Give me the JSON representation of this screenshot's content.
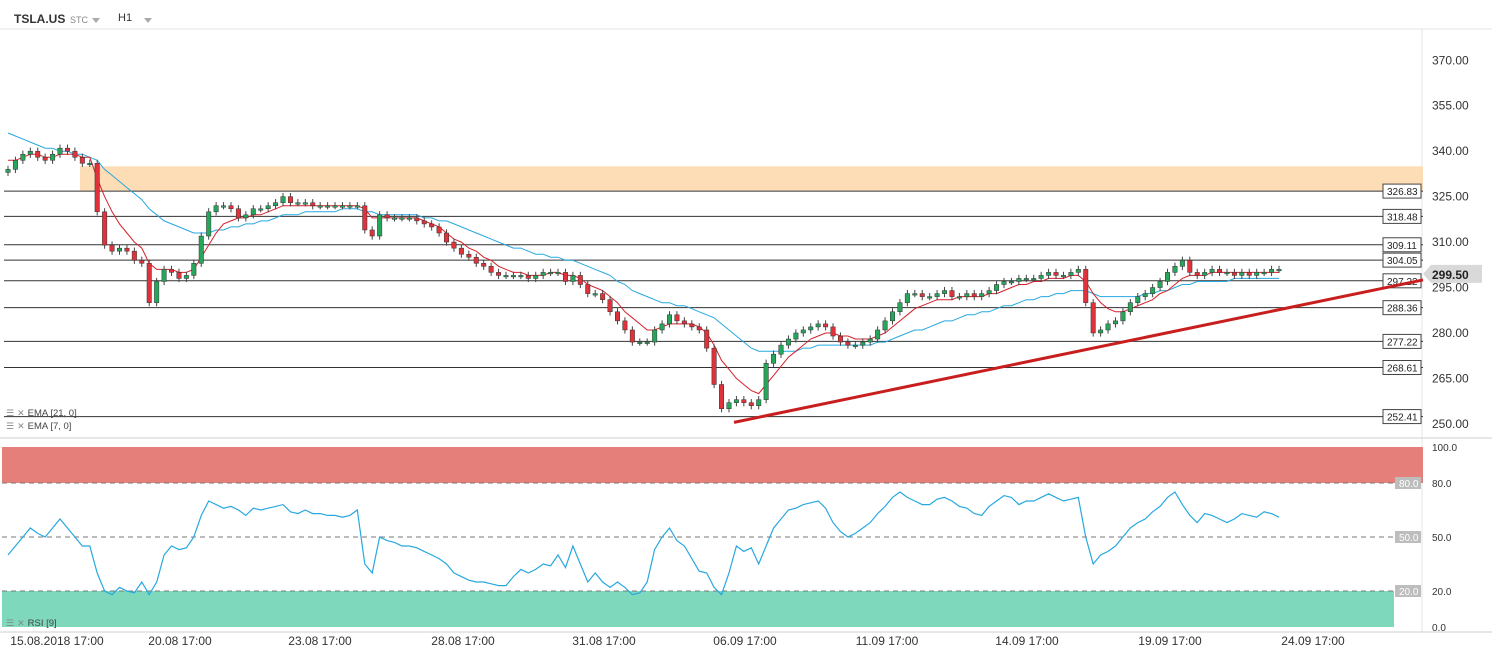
{
  "header": {
    "symbol": "TSLA.US",
    "sub": "STC",
    "timeframe": "H1"
  },
  "indicators": {
    "ema1": "EMA [21, 0]",
    "ema2": "EMA [7, 0]",
    "rsi": "RSI [9]"
  },
  "price_axis": {
    "ticks": [
      "370.00",
      "355.00",
      "340.00",
      "325.00",
      "310.00",
      "295.00",
      "280.00",
      "265.00",
      "250.00"
    ],
    "current": "299.50"
  },
  "rsi_axis": {
    "ticks": [
      "100.0",
      "80.0",
      "50.0",
      "20.0",
      "0.0"
    ]
  },
  "levels": [
    {
      "label": "326.83",
      "value": 326.83
    },
    {
      "label": "318.48",
      "value": 318.48
    },
    {
      "label": "309.11",
      "value": 309.11
    },
    {
      "label": "304.05",
      "value": 304.05
    },
    {
      "label": "297.22",
      "value": 297.22
    },
    {
      "label": "288.36",
      "value": 288.36
    },
    {
      "label": "277.22",
      "value": 277.22
    },
    {
      "label": "268.61",
      "value": 268.61
    },
    {
      "label": "252.41",
      "value": 252.41
    }
  ],
  "rsi_levels": [
    {
      "label": "80.0",
      "value": 80
    },
    {
      "label": "50.0",
      "value": 50
    },
    {
      "label": "20.0",
      "value": 20
    }
  ],
  "x_labels": [
    "15.08.2018 17:00",
    "20.08 17:00",
    "23.08 17:00",
    "28.08 17:00",
    "31.08 17:00",
    "06.09 17:00",
    "11.09 17:00",
    "14.09 17:00",
    "19.09 17:00",
    "24.09 17:00"
  ],
  "colors": {
    "up": "#26a65b",
    "down": "#e0323b",
    "ema7": "#d7202a",
    "ema21": "#28a8e0",
    "rsi": "#28a8e0",
    "zone": "#fbd7a9",
    "trend": "#c81e1e",
    "overbought": "#e57f7a",
    "oversold": "#7ed8bb",
    "current_badge": "#d9d9d9"
  },
  "chart_data": {
    "type": "candlestick",
    "y_range": [
      246,
      380
    ],
    "resistance_zone": [
      327,
      335
    ],
    "trendline": {
      "from_price": 250.5,
      "to_price": 297.5
    },
    "close": [
      334,
      337,
      339,
      340,
      338,
      337,
      339,
      341,
      340,
      338,
      336,
      336,
      320,
      309,
      307,
      308,
      307,
      304,
      303,
      290,
      297,
      301,
      300,
      298,
      299,
      303,
      312,
      320,
      322,
      322,
      321,
      318,
      319,
      321,
      321,
      322,
      323,
      325,
      323,
      323,
      323,
      322,
      322,
      322,
      322,
      322,
      322,
      322,
      314,
      312,
      319,
      318,
      318,
      318,
      318,
      317,
      316,
      315,
      313,
      310,
      308,
      306,
      305,
      303,
      302,
      300,
      299,
      299,
      299,
      299,
      298,
      299,
      300,
      300,
      300,
      297,
      299,
      296,
      293,
      293,
      291,
      287,
      284,
      281,
      277,
      277,
      277,
      281,
      283,
      286,
      284,
      283,
      282,
      281,
      275,
      263,
      255,
      257,
      258,
      257,
      256,
      258,
      270,
      273,
      276,
      278,
      280,
      281,
      282,
      283,
      282,
      279,
      277,
      276,
      276,
      277,
      278,
      281,
      284,
      287,
      290,
      293,
      293,
      292,
      292,
      293,
      294,
      292,
      292,
      293,
      292,
      293,
      294,
      296,
      297,
      297,
      298,
      298,
      298,
      299,
      300,
      299,
      299,
      300,
      301,
      290,
      280,
      281,
      283,
      284,
      287,
      290,
      292,
      293,
      295,
      297,
      300,
      302,
      304,
      300,
      299,
      300,
      301,
      300,
      300,
      299,
      300,
      299,
      300,
      300,
      301,
      301
    ],
    "ema7": [
      337,
      337,
      338,
      339,
      339,
      338,
      338,
      339,
      339,
      339,
      338,
      338,
      331,
      325,
      320,
      316,
      313,
      310,
      308,
      303,
      301,
      301,
      301,
      300,
      300,
      301,
      305,
      309,
      313,
      316,
      317,
      318,
      318,
      319,
      319,
      320,
      321,
      322,
      322,
      322,
      322,
      322,
      322,
      322,
      322,
      322,
      322,
      322,
      321,
      318,
      318,
      318,
      318,
      318,
      318,
      318,
      317,
      316,
      315,
      313,
      311,
      310,
      308,
      307,
      305,
      304,
      302,
      301,
      300,
      300,
      299,
      299,
      299,
      300,
      300,
      299,
      299,
      298,
      296,
      295,
      294,
      292,
      290,
      287,
      285,
      283,
      281,
      281,
      282,
      283,
      283,
      283,
      283,
      282,
      280,
      276,
      271,
      268,
      265,
      263,
      261,
      260,
      263,
      266,
      269,
      272,
      274,
      276,
      278,
      279,
      280,
      280,
      279,
      279,
      278,
      278,
      278,
      279,
      280,
      282,
      284,
      286,
      288,
      289,
      290,
      291,
      291,
      291,
      292,
      292,
      292,
      292,
      293,
      293,
      294,
      295,
      296,
      296,
      297,
      297,
      298,
      298,
      298,
      299,
      299,
      297,
      293,
      290,
      288,
      287,
      287,
      288,
      289,
      290,
      291,
      293,
      294,
      296,
      298,
      299,
      299,
      299,
      300,
      300,
      300,
      300,
      300,
      300,
      300,
      300,
      300,
      300
    ],
    "ema21": [
      346,
      345,
      344,
      343,
      342,
      341,
      341,
      340,
      340,
      339,
      339,
      338,
      337,
      334,
      332,
      330,
      328,
      326,
      324,
      321,
      319,
      317,
      316,
      315,
      314,
      313,
      313,
      313,
      314,
      314,
      315,
      315,
      316,
      316,
      317,
      317,
      318,
      319,
      319,
      319,
      320,
      320,
      320,
      320,
      320,
      321,
      321,
      321,
      320,
      320,
      319,
      319,
      319,
      319,
      319,
      319,
      318,
      318,
      317,
      317,
      316,
      315,
      314,
      313,
      312,
      311,
      310,
      309,
      308,
      308,
      307,
      306,
      306,
      305,
      305,
      304,
      304,
      303,
      302,
      301,
      300,
      299,
      297,
      296,
      294,
      293,
      292,
      291,
      290,
      290,
      289,
      289,
      288,
      287,
      286,
      285,
      283,
      281,
      279,
      277,
      275,
      274,
      274,
      274,
      274,
      274,
      274,
      275,
      275,
      276,
      276,
      276,
      276,
      276,
      276,
      276,
      276,
      277,
      277,
      278,
      279,
      280,
      281,
      281,
      282,
      283,
      284,
      284,
      285,
      286,
      286,
      287,
      287,
      288,
      289,
      289,
      290,
      291,
      291,
      292,
      292,
      293,
      293,
      294,
      294,
      294,
      293,
      292,
      292,
      292,
      292,
      292,
      292,
      293,
      293,
      294,
      294,
      295,
      296,
      296,
      297,
      297,
      297,
      297,
      297,
      298,
      298,
      298,
      298,
      298,
      298,
      298
    ],
    "rsi": [
      40,
      45,
      50,
      55,
      52,
      50,
      55,
      60,
      55,
      50,
      45,
      45,
      30,
      20,
      18,
      22,
      20,
      19,
      25,
      18,
      25,
      40,
      45,
      43,
      44,
      50,
      62,
      70,
      68,
      66,
      67,
      65,
      62,
      66,
      65,
      66,
      67,
      68,
      64,
      63,
      65,
      63,
      63,
      62,
      62,
      61,
      62,
      65,
      35,
      30,
      50,
      48,
      47,
      45,
      45,
      44,
      42,
      40,
      38,
      35,
      30,
      28,
      26,
      25,
      25,
      24,
      23,
      23,
      28,
      32,
      30,
      32,
      35,
      34,
      40,
      33,
      45,
      35,
      25,
      30,
      25,
      22,
      25,
      22,
      18,
      19,
      25,
      43,
      50,
      55,
      48,
      45,
      38,
      31,
      30,
      22,
      18,
      30,
      45,
      42,
      44,
      35,
      45,
      55,
      60,
      65,
      66,
      68,
      69,
      70,
      66,
      58,
      53,
      50,
      52,
      55,
      58,
      63,
      67,
      72,
      75,
      72,
      70,
      68,
      68,
      71,
      72,
      70,
      67,
      66,
      63,
      62,
      67,
      70,
      73,
      72,
      68,
      70,
      70,
      72,
      74,
      72,
      70,
      71,
      72,
      50,
      35,
      40,
      42,
      45,
      50,
      55,
      58,
      60,
      64,
      67,
      72,
      75,
      68,
      62,
      58,
      63,
      62,
      60,
      58,
      60,
      63,
      62,
      61,
      64,
      63,
      61
    ]
  }
}
